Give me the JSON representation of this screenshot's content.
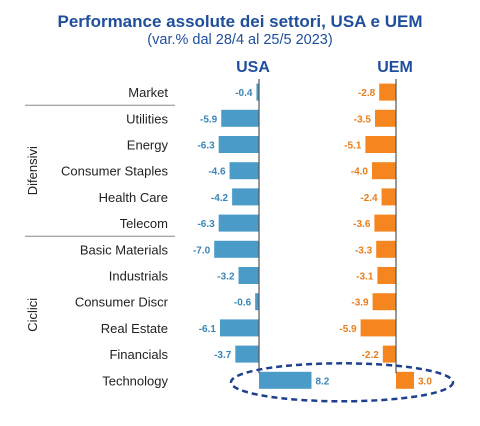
{
  "title": "Performance assolute dei settori, USA e UEM",
  "subtitle": "(var.% dal 28/4 al 25/5 2023)",
  "chart_data": {
    "type": "bar",
    "orientation": "horizontal",
    "title": "Performance assolute dei settori, USA e UEM",
    "subtitle": "(var.% dal 28/4 al 25/5 2023)",
    "categories": [
      "Market",
      "Utilities",
      "Energy",
      "Consumer Staples",
      "Health Care",
      "Telecom",
      "Basic Materials",
      "Industrials",
      "Consumer Discr",
      "Real Estate",
      "Financials",
      "Technology"
    ],
    "groups": [
      {
        "label": "Difensivi",
        "categories": [
          "Utilities",
          "Energy",
          "Consumer Staples",
          "Health Care",
          "Telecom"
        ]
      },
      {
        "label": "Ciclici",
        "categories": [
          "Basic Materials",
          "Industrials",
          "Consumer Discr",
          "Real Estate",
          "Financials",
          "Technology"
        ]
      }
    ],
    "series": [
      {
        "name": "USA",
        "color": "#4a9bc8",
        "label_color": "#3a86b8",
        "values": [
          -0.4,
          -5.9,
          -6.3,
          -4.6,
          -4.2,
          -6.3,
          -7.0,
          -3.2,
          -0.6,
          -6.1,
          -3.7,
          8.2
        ],
        "labels": [
          "-0.4",
          "-5.9",
          "-6.3",
          "-4.6",
          "-4.2",
          "-6.3",
          "-7.0",
          "-3.2",
          "-0.6",
          "-6.1",
          "-3.7",
          "8.2"
        ]
      },
      {
        "name": "UEM",
        "color": "#f5861f",
        "label_color": "#e77d1c",
        "values": [
          -2.8,
          -3.5,
          -5.1,
          -4.0,
          -2.4,
          -3.6,
          -3.3,
          -3.1,
          -3.9,
          -5.9,
          -2.2,
          3.0
        ],
        "labels": [
          "-2.8",
          "-3.5",
          "-5.1",
          "-4.0",
          "-2.4",
          "-3.6",
          "-3.3",
          "-3.1",
          "-3.9",
          "-5.9",
          "-2.2",
          "3.0"
        ]
      }
    ],
    "highlight": {
      "category": "Technology",
      "style": "dashed-ellipse",
      "color": "#1f3f8f"
    },
    "grid": false,
    "legend": "top"
  }
}
